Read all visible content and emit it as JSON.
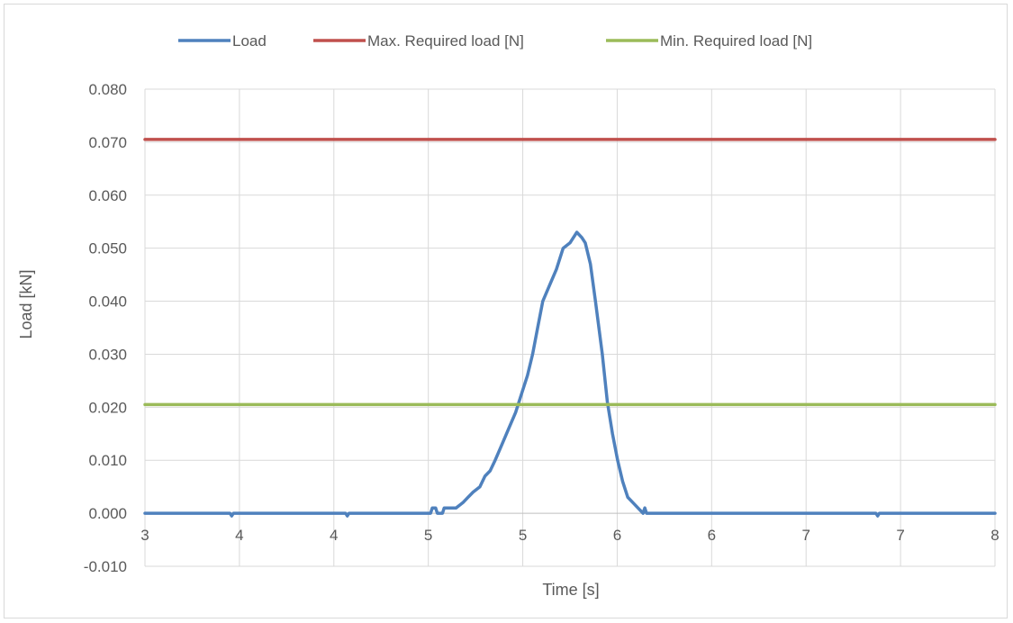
{
  "chart_data": {
    "type": "line",
    "title": "",
    "xlabel": "Time [s]",
    "ylabel": "Load [kN]",
    "xlim": [
      3.0,
      8.0
    ],
    "ylim": [
      -0.01,
      0.08
    ],
    "x_tick_labels": [
      "3",
      "4",
      "4",
      "5",
      "5",
      "6",
      "6",
      "7",
      "7",
      "8"
    ],
    "y_tick_labels": [
      "-0.010",
      "0.000",
      "0.010",
      "0.020",
      "0.030",
      "0.040",
      "0.050",
      "0.060",
      "0.070",
      "0.080"
    ],
    "y_ticks": [
      -0.01,
      0.0,
      0.01,
      0.02,
      0.03,
      0.04,
      0.05,
      0.06,
      0.07,
      0.08
    ],
    "grid": true,
    "legend_position": "top",
    "series": [
      {
        "name": "Load",
        "color": "#4f81bd",
        "points": [
          [
            3.0,
            0.0
          ],
          [
            3.5,
            0.0
          ],
          [
            3.51,
            -0.0005
          ],
          [
            3.52,
            0.0
          ],
          [
            4.18,
            0.0
          ],
          [
            4.19,
            -0.0005
          ],
          [
            4.2,
            0.0
          ],
          [
            4.68,
            0.0
          ],
          [
            4.69,
            0.001
          ],
          [
            4.71,
            0.001
          ],
          [
            4.72,
            0.0
          ],
          [
            4.75,
            0.0
          ],
          [
            4.76,
            0.001
          ],
          [
            4.83,
            0.001
          ],
          [
            4.87,
            0.002
          ],
          [
            4.9,
            0.003
          ],
          [
            4.93,
            0.004
          ],
          [
            4.97,
            0.005
          ],
          [
            5.0,
            0.007
          ],
          [
            5.03,
            0.008
          ],
          [
            5.06,
            0.01
          ],
          [
            5.1,
            0.013
          ],
          [
            5.14,
            0.016
          ],
          [
            5.18,
            0.019
          ],
          [
            5.21,
            0.022
          ],
          [
            5.25,
            0.026
          ],
          [
            5.28,
            0.03
          ],
          [
            5.31,
            0.035
          ],
          [
            5.34,
            0.04
          ],
          [
            5.38,
            0.043
          ],
          [
            5.42,
            0.046
          ],
          [
            5.46,
            0.05
          ],
          [
            5.5,
            0.051
          ],
          [
            5.54,
            0.053
          ],
          [
            5.57,
            0.052
          ],
          [
            5.59,
            0.051
          ],
          [
            5.62,
            0.047
          ],
          [
            5.65,
            0.04
          ],
          [
            5.69,
            0.03
          ],
          [
            5.72,
            0.021
          ],
          [
            5.75,
            0.015
          ],
          [
            5.78,
            0.01
          ],
          [
            5.81,
            0.006
          ],
          [
            5.84,
            0.003
          ],
          [
            5.87,
            0.002
          ],
          [
            5.9,
            0.001
          ],
          [
            5.93,
            0.0
          ],
          [
            5.94,
            0.001
          ],
          [
            5.95,
            0.0
          ],
          [
            7.3,
            0.0
          ],
          [
            7.31,
            -0.0005
          ],
          [
            7.32,
            0.0
          ],
          [
            8.0,
            0.0
          ]
        ]
      },
      {
        "name": "Max. Required load [N]",
        "color": "#c0504d",
        "points": [
          [
            3.0,
            0.0705
          ],
          [
            8.0,
            0.0705
          ]
        ]
      },
      {
        "name": "Min. Required load [N]",
        "color": "#9bbb59",
        "points": [
          [
            3.0,
            0.0205
          ],
          [
            8.0,
            0.0205
          ]
        ]
      }
    ]
  }
}
